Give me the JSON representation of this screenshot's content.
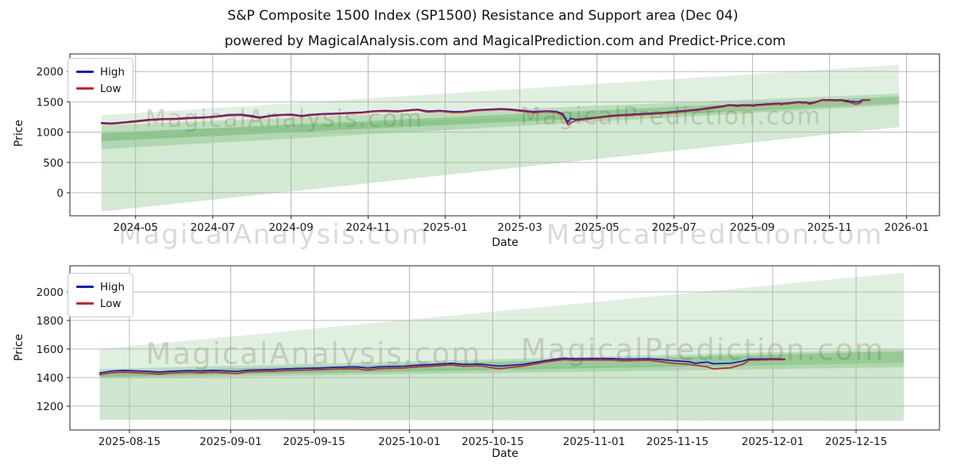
{
  "header": {
    "title": "S&P Composite 1500 Index (SP1500) Resistance and Support area (Dec 04)",
    "subtitle": "powered by MagicalAnalysis.com and MagicalPrediction.com and Predict-Price.com"
  },
  "watermarks": {
    "analysis": "MagicalAnalysis.com",
    "prediction": "MagicalPrediction.com"
  },
  "legend": {
    "high": "High",
    "low": "Low"
  },
  "colors": {
    "high_line": "#1515c8",
    "low_line": "#cc2222",
    "band_green": "#008000",
    "grid": "#b0b0b0",
    "spine": "#262626",
    "text": "#1a1a1a",
    "watermark": "rgba(153,122,122,0.30)"
  },
  "chart_data": [
    {
      "type": "line",
      "xlabel": "Date",
      "ylabel": "Price",
      "legend": [
        "High",
        "Low"
      ],
      "legend_position": "upper-left",
      "grid": true,
      "x_domain": [
        "2024-03-10",
        "2026-01-27"
      ],
      "y_domain": [
        -380,
        2290
      ],
      "y_ticks": [
        0,
        500,
        1000,
        1500,
        2000
      ],
      "x_ticks": [
        {
          "label": "2024-05",
          "date": "2024-05-01"
        },
        {
          "label": "2024-07",
          "date": "2024-07-01"
        },
        {
          "label": "2024-09",
          "date": "2024-09-01"
        },
        {
          "label": "2024-11",
          "date": "2024-11-01"
        },
        {
          "label": "2025-01",
          "date": "2025-01-01"
        },
        {
          "label": "2025-03",
          "date": "2025-03-01"
        },
        {
          "label": "2025-05",
          "date": "2025-05-01"
        },
        {
          "label": "2025-07",
          "date": "2025-07-01"
        },
        {
          "label": "2025-09",
          "date": "2025-09-01"
        },
        {
          "label": "2025-11",
          "date": "2025-11-01"
        },
        {
          "label": "2026-01",
          "date": "2026-01-01"
        }
      ],
      "series": [
        "High",
        "Low"
      ],
      "source": "quotes",
      "line_window": [
        "2024-04-04",
        "2025-12-03"
      ],
      "bands": [
        {
          "x0": "2024-04-04",
          "x1": "2025-12-26",
          "top0": 1280,
          "top1": 2110,
          "bot0": -310,
          "bot1": 1085,
          "alpha": 0.12
        },
        {
          "x0": "2024-04-04",
          "x1": "2025-12-26",
          "top0": 1000,
          "top1": 1460,
          "bot0": -310,
          "bot1": 1085,
          "alpha": 0.06
        },
        {
          "x0": "2024-04-04",
          "x1": "2025-12-26",
          "top0": 1110,
          "top1": 1635,
          "bot0": 720,
          "bot1": 1450,
          "alpha": 0.16
        },
        {
          "x0": "2024-04-04",
          "x1": "2025-12-26",
          "top0": 980,
          "top1": 1590,
          "bot0": 850,
          "bot1": 1470,
          "alpha": 0.2
        }
      ]
    },
    {
      "type": "line",
      "xlabel": "Date",
      "ylabel": "Price",
      "legend": [
        "High",
        "Low"
      ],
      "legend_position": "upper-left",
      "grid": true,
      "x_domain": [
        "2025-08-05",
        "2025-12-29"
      ],
      "y_domain": [
        1033,
        2183
      ],
      "y_ticks": [
        1200,
        1400,
        1600,
        1800,
        2000
      ],
      "x_ticks": [
        {
          "label": "2025-08-15",
          "date": "2025-08-15"
        },
        {
          "label": "2025-09-01",
          "date": "2025-09-01"
        },
        {
          "label": "2025-09-15",
          "date": "2025-09-15"
        },
        {
          "label": "2025-10-01",
          "date": "2025-10-01"
        },
        {
          "label": "2025-10-15",
          "date": "2025-10-15"
        },
        {
          "label": "2025-11-01",
          "date": "2025-11-01"
        },
        {
          "label": "2025-11-15",
          "date": "2025-11-15"
        },
        {
          "label": "2025-12-01",
          "date": "2025-12-01"
        },
        {
          "label": "2025-12-15",
          "date": "2025-12-15"
        }
      ],
      "series": [
        "High",
        "Low"
      ],
      "source": "quotes",
      "line_window": [
        "2025-08-10",
        "2025-12-03"
      ],
      "bands": [
        {
          "x0": "2025-08-10",
          "x1": "2025-12-23",
          "top0": 1600,
          "top1": 2135,
          "bot0": 1105,
          "bot1": 1098,
          "alpha": 0.12
        },
        {
          "x0": "2025-08-10",
          "x1": "2025-12-23",
          "top0": 1435,
          "top1": 1505,
          "bot0": 1103,
          "bot1": 1096,
          "alpha": 0.08
        },
        {
          "x0": "2025-08-10",
          "x1": "2025-12-23",
          "top0": 1460,
          "top1": 1600,
          "bot0": 1395,
          "bot1": 1472,
          "alpha": 0.16
        },
        {
          "x0": "2025-08-10",
          "x1": "2025-12-23",
          "top0": 1440,
          "top1": 1585,
          "bot0": 1405,
          "bot1": 1505,
          "alpha": 0.2
        }
      ]
    }
  ],
  "quotes": {
    "columns": [
      "date",
      "high",
      "low"
    ],
    "rows": [
      [
        "2024-04-04",
        1155,
        1140
      ],
      [
        "2024-04-12",
        1148,
        1133
      ],
      [
        "2024-04-22",
        1165,
        1152
      ],
      [
        "2024-05-02",
        1185,
        1172
      ],
      [
        "2024-05-12",
        1208,
        1195
      ],
      [
        "2024-05-22",
        1218,
        1206
      ],
      [
        "2024-06-03",
        1225,
        1212
      ],
      [
        "2024-06-13",
        1238,
        1225
      ],
      [
        "2024-06-23",
        1246,
        1233
      ],
      [
        "2024-07-03",
        1260,
        1247
      ],
      [
        "2024-07-13",
        1283,
        1270
      ],
      [
        "2024-07-23",
        1293,
        1278
      ],
      [
        "2024-08-01",
        1270,
        1252
      ],
      [
        "2024-08-07",
        1246,
        1228
      ],
      [
        "2024-08-15",
        1270,
        1258
      ],
      [
        "2024-08-23",
        1288,
        1276
      ],
      [
        "2024-09-02",
        1293,
        1279
      ],
      [
        "2024-09-09",
        1270,
        1256
      ],
      [
        "2024-09-17",
        1290,
        1278
      ],
      [
        "2024-09-27",
        1303,
        1291
      ],
      [
        "2024-10-07",
        1310,
        1298
      ],
      [
        "2024-10-17",
        1320,
        1308
      ],
      [
        "2024-10-27",
        1328,
        1316
      ],
      [
        "2024-11-06",
        1350,
        1338
      ],
      [
        "2024-11-14",
        1356,
        1343
      ],
      [
        "2024-11-24",
        1348,
        1335
      ],
      [
        "2024-12-04",
        1366,
        1354
      ],
      [
        "2024-12-10",
        1376,
        1364
      ],
      [
        "2024-12-18",
        1346,
        1330
      ],
      [
        "2024-12-28",
        1356,
        1344
      ],
      [
        "2025-01-07",
        1338,
        1323
      ],
      [
        "2025-01-15",
        1340,
        1326
      ],
      [
        "2025-01-25",
        1366,
        1353
      ],
      [
        "2025-02-04",
        1376,
        1364
      ],
      [
        "2025-02-14",
        1386,
        1374
      ],
      [
        "2025-02-22",
        1378,
        1363
      ],
      [
        "2025-03-04",
        1353,
        1338
      ],
      [
        "2025-03-12",
        1336,
        1320
      ],
      [
        "2025-03-22",
        1350,
        1338
      ],
      [
        "2025-03-30",
        1340,
        1326
      ],
      [
        "2025-04-04",
        1303,
        1278
      ],
      [
        "2025-04-08",
        1163,
        1120
      ],
      [
        "2025-04-10",
        1226,
        1150
      ],
      [
        "2025-04-14",
        1208,
        1190
      ],
      [
        "2025-04-22",
        1223,
        1210
      ],
      [
        "2025-05-02",
        1246,
        1234
      ],
      [
        "2025-05-12",
        1270,
        1258
      ],
      [
        "2025-05-22",
        1286,
        1274
      ],
      [
        "2025-06-01",
        1296,
        1284
      ],
      [
        "2025-06-11",
        1308,
        1296
      ],
      [
        "2025-06-21",
        1320,
        1308
      ],
      [
        "2025-07-01",
        1336,
        1324
      ],
      [
        "2025-07-11",
        1356,
        1344
      ],
      [
        "2025-07-21",
        1378,
        1366
      ],
      [
        "2025-07-31",
        1406,
        1394
      ],
      [
        "2025-08-05",
        1420,
        1408
      ],
      [
        "2025-08-10",
        1432,
        1420
      ],
      [
        "2025-08-12",
        1446,
        1434
      ],
      [
        "2025-08-14",
        1450,
        1438
      ],
      [
        "2025-08-18",
        1444,
        1430
      ],
      [
        "2025-08-20",
        1438,
        1424
      ],
      [
        "2025-08-22",
        1444,
        1432
      ],
      [
        "2025-08-25",
        1449,
        1437
      ],
      [
        "2025-08-27",
        1446,
        1433
      ],
      [
        "2025-08-29",
        1450,
        1438
      ],
      [
        "2025-09-02",
        1443,
        1428
      ],
      [
        "2025-09-04",
        1452,
        1440
      ],
      [
        "2025-09-08",
        1456,
        1444
      ],
      [
        "2025-09-10",
        1460,
        1448
      ],
      [
        "2025-09-12",
        1463,
        1451
      ],
      [
        "2025-09-16",
        1467,
        1455
      ],
      [
        "2025-09-18",
        1471,
        1459
      ],
      [
        "2025-09-22",
        1475,
        1463
      ],
      [
        "2025-09-24",
        1467,
        1452
      ],
      [
        "2025-09-26",
        1475,
        1463
      ],
      [
        "2025-09-30",
        1479,
        1467
      ],
      [
        "2025-10-02",
        1486,
        1474
      ],
      [
        "2025-10-06",
        1494,
        1483
      ],
      [
        "2025-10-08",
        1500,
        1489
      ],
      [
        "2025-10-10",
        1492,
        1479
      ],
      [
        "2025-10-13",
        1494,
        1482
      ],
      [
        "2025-10-16",
        1480,
        1462
      ],
      [
        "2025-10-20",
        1492,
        1480
      ],
      [
        "2025-10-22",
        1505,
        1494
      ],
      [
        "2025-10-24",
        1520,
        1510
      ],
      [
        "2025-10-27",
        1536,
        1526
      ],
      [
        "2025-10-29",
        1531,
        1521
      ],
      [
        "2025-10-31",
        1534,
        1524
      ],
      [
        "2025-11-04",
        1533,
        1523
      ],
      [
        "2025-11-06",
        1529,
        1517
      ],
      [
        "2025-11-10",
        1532,
        1522
      ],
      [
        "2025-11-12",
        1527,
        1513
      ],
      [
        "2025-11-14",
        1519,
        1501
      ],
      [
        "2025-11-17",
        1511,
        1493
      ],
      [
        "2025-11-18",
        1500,
        1487
      ],
      [
        "2025-11-20",
        1509,
        1475
      ],
      [
        "2025-11-21",
        1497,
        1461
      ],
      [
        "2025-11-24",
        1501,
        1469
      ],
      [
        "2025-11-26",
        1515,
        1493
      ],
      [
        "2025-11-27",
        1529,
        1521
      ],
      [
        "2025-12-01",
        1531,
        1525
      ],
      [
        "2025-12-03",
        1529,
        1525
      ]
    ]
  }
}
